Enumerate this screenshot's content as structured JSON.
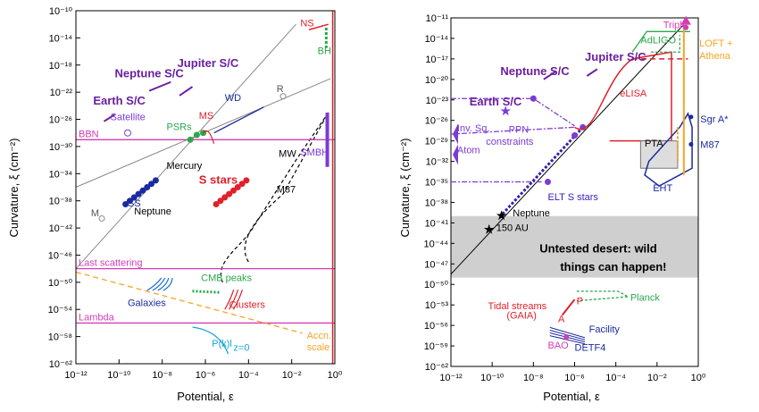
{
  "chart_data": [
    {
      "type": "scatter",
      "xlabel": "Potential, ε",
      "ylabel": "Curvature, ξ (cm⁻²)",
      "xscale": "log",
      "yscale": "log",
      "xlim": [
        -12,
        0
      ],
      "ylim": [
        -62,
        -10
      ],
      "x_ticks": [
        "10⁻¹²",
        "10⁻¹⁰",
        "10⁻⁸",
        "10⁻⁶",
        "10⁻⁴",
        "10⁻²",
        "10⁰"
      ],
      "y_ticks": [
        "10⁻¹⁰",
        "10⁻¹⁴",
        "10⁻¹⁸",
        "10⁻²²",
        "10⁻²⁶",
        "10⁻³⁰",
        "10⁻³⁴",
        "10⁻³⁸",
        "10⁻⁴²",
        "10⁻⁴⁶",
        "10⁻⁵⁰",
        "10⁻⁵⁴",
        "10⁻⁵⁸",
        "10⁻⁶²"
      ],
      "hlines": [
        {
          "label": "BBN",
          "log_y": -29
        },
        {
          "label": "Last scattering",
          "log_y": -48
        },
        {
          "label": "Lambda",
          "log_y": -56
        }
      ],
      "labels": {
        "ns": "NS",
        "bh": "BH",
        "neptune_sc": "Neptune S/C",
        "jupiter_sc": "Jupiter S/C",
        "earth_sc": "Earth S/C",
        "satellite": "Satellite",
        "wd": "WD",
        "r": "R",
        "ms": "MS",
        "psrs": "PSRs",
        "smbh": "SMBH",
        "mercury": "Mercury",
        "mw": "MW",
        "s_stars": "S stars",
        "m87": "M87",
        "ss": "SS",
        "neptune": "Neptune",
        "m": "M",
        "cmb_peaks": "CMB peaks",
        "galaxies": "Galaxies",
        "clusters": "Clusters",
        "pk": "P(k)l",
        "pk_sub": "z=0",
        "accn_scale_1": "Accn.",
        "accn_scale_2": "scale"
      },
      "series": [
        {
          "name": "Mercury/Neptune (solar system)",
          "points": [
            [
              -9.7,
              -38.5
            ],
            [
              -9.5,
              -38
            ],
            [
              -9.3,
              -37.5
            ],
            [
              -9.1,
              -37
            ],
            [
              -8.9,
              -36.5
            ],
            [
              -8.7,
              -36
            ],
            [
              -8.5,
              -35.5
            ],
            [
              -8.3,
              -35
            ]
          ]
        },
        {
          "name": "S stars",
          "points": [
            [
              -5.5,
              -38.5
            ],
            [
              -5.3,
              -38
            ],
            [
              -5.1,
              -37.5
            ],
            [
              -4.9,
              -37
            ],
            [
              -4.7,
              -36.5
            ],
            [
              -4.5,
              -36
            ],
            [
              -4.3,
              -35.5
            ],
            [
              -4.1,
              -35
            ]
          ]
        },
        {
          "name": "PSRs",
          "points": [
            [
              -6.7,
              -29
            ],
            [
              -6.4,
              -28.3
            ],
            [
              -6.1,
              -28
            ]
          ]
        }
      ]
    },
    {
      "type": "scatter",
      "xlabel": "Potential, ε",
      "ylabel": "Curvature, ξ (cm⁻²)",
      "xscale": "log",
      "yscale": "log",
      "xlim": [
        -12,
        0
      ],
      "ylim": [
        -62,
        -10
      ],
      "x_ticks": [
        "10⁻¹²",
        "10⁻¹⁰",
        "10⁻⁸",
        "10⁻⁶",
        "10⁻⁴",
        "10⁻²",
        "10⁰"
      ],
      "y_ticks": [
        "10⁻¹¹",
        "10⁻¹⁴",
        "10⁻¹⁷",
        "10⁻²⁰",
        "10⁻²³",
        "10⁻²⁶",
        "10⁻²⁹",
        "10⁻³²",
        "10⁻³⁵",
        "10⁻³⁸",
        "10⁻⁴¹",
        "10⁻⁴⁴",
        "10⁻⁴⁷",
        "10⁻⁵⁰",
        "10⁻⁵³",
        "10⁻⁵⁶",
        "10⁻⁵⁹",
        "10⁻⁶²"
      ],
      "shaded_region": {
        "label_1": "Untested desert: wild",
        "label_2": "things can happen!",
        "log_y_range": [
          -49,
          -40
        ]
      },
      "labels": {
        "triple": "Triple",
        "adligo": "AdLIGO",
        "loft_1": "LOFT +",
        "loft_2": "Athena",
        "neptune_sc": "Neptune S/C",
        "jupiter_sc": "Jupiter S/C",
        "earth_sc": "Earth S/C",
        "elisa": "eLISA",
        "sgra": "Sgr A*",
        "inv_sq": "Inv. Sq.",
        "ppn_1": "PPN",
        "ppn_2": "constraints",
        "atom": "Atom",
        "pta": "PTA",
        "m87": "M87",
        "eht": "EHT",
        "elt": "ELT S stars",
        "neptune": "Neptune",
        "au150": "150 AU",
        "tidal_1": "Tidal streams",
        "tidal_2": "(GAIA)",
        "p": "P",
        "a": "A",
        "planck": "Planck",
        "facility": "Facility",
        "bao": "BAO",
        "detf4": "DETF4"
      },
      "series": [
        {
          "name": "Neptune",
          "points": [
            [
              -9.5,
              -39.7
            ]
          ]
        },
        {
          "name": "150 AU",
          "points": [
            [
              -10.1,
              -41.7
            ]
          ]
        },
        {
          "name": "ELT S stars",
          "points": [
            [
              -7.3,
              -35
            ],
            [
              -6,
              -28.2
            ],
            [
              -5.6,
              -27
            ]
          ]
        }
      ]
    }
  ]
}
